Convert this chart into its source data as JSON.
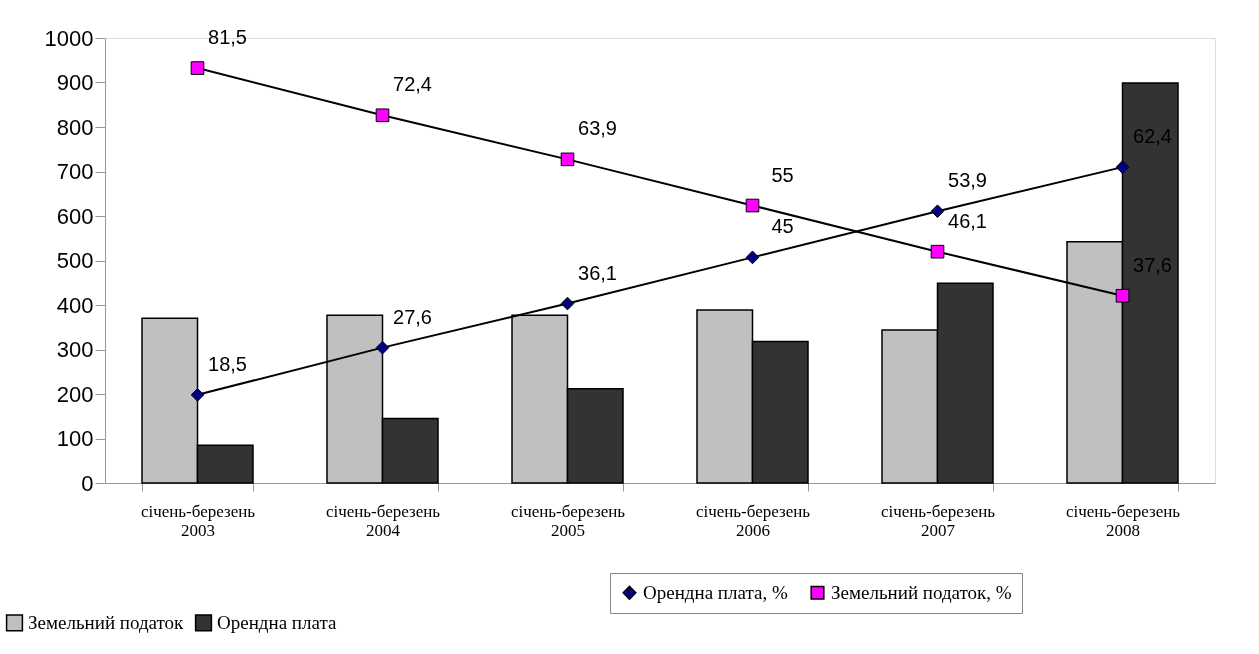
{
  "chart_data": {
    "type": "bar",
    "categories": [
      "січень-березень\n2003",
      "січень-березень\n2004",
      "січень-березень\n2005",
      "січень-березень\n2006",
      "січень-березень\n2007",
      "січень-березень\n2008"
    ],
    "ylim": [
      0,
      1000
    ],
    "yticks": [
      0,
      100,
      200,
      300,
      400,
      500,
      600,
      700,
      800,
      900,
      1000
    ],
    "y2lim": [
      1.5,
      87.3
    ],
    "grid": false,
    "legend": "bottom",
    "series": [
      {
        "name": "Земельний податок",
        "color": "#c0c0c0",
        "values": [
          370,
          377,
          377,
          389,
          344,
          542
        ]
      },
      {
        "name": "Орендна плата",
        "color": "#333333",
        "values": [
          85,
          145,
          212,
          318,
          449,
          899
        ]
      },
      {
        "name": "Орендна плата, %",
        "type": "line",
        "axis": "y2",
        "marker": "diamond",
        "color": "#000080",
        "values": [
          18.5,
          27.6,
          36.1,
          45,
          53.9,
          62.4
        ],
        "value_labels": [
          "18,5",
          "27,6",
          "36,1",
          "45",
          "53,9",
          "62,4"
        ]
      },
      {
        "name": "Земельний податок, %",
        "type": "line",
        "axis": "y2",
        "marker": "square",
        "color": "#ff00ff",
        "values": [
          81.5,
          72.4,
          63.9,
          55,
          46.1,
          37.6
        ],
        "value_labels": [
          "81,5",
          "72,4",
          "63,9",
          "55",
          "46,1",
          "37,6"
        ]
      }
    ]
  }
}
